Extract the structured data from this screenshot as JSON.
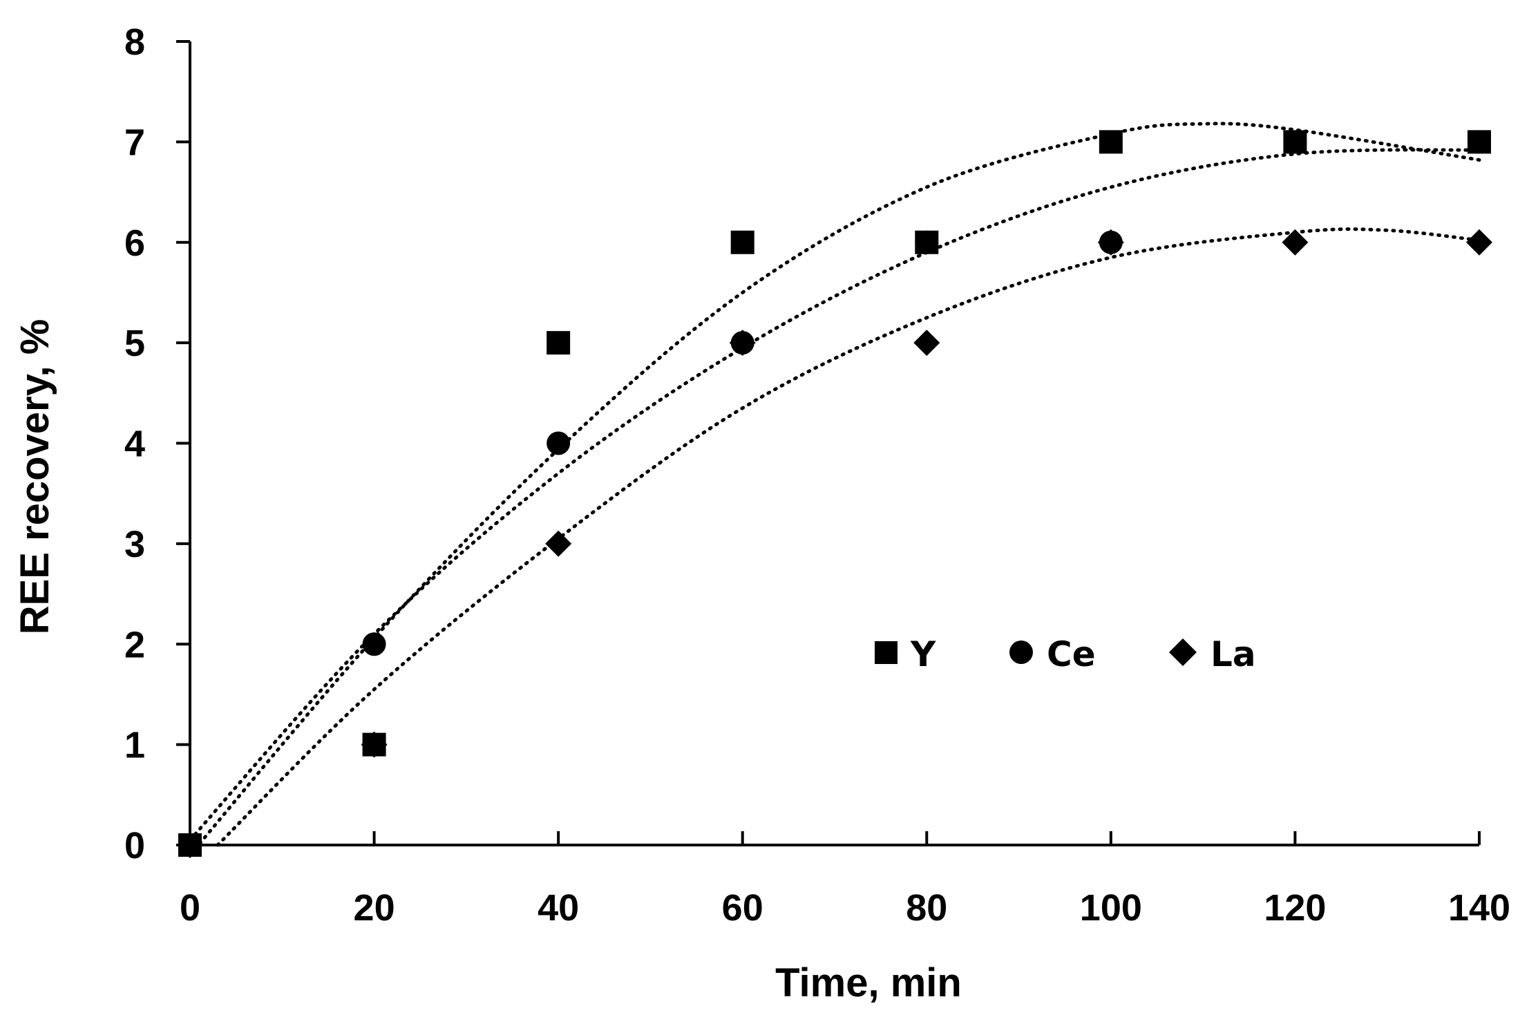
{
  "chart_data": {
    "type": "scatter",
    "title": "",
    "xlabel": "Time, min",
    "ylabel": "REE recovery, %",
    "xlim": [
      0,
      140
    ],
    "ylim": [
      0,
      8
    ],
    "xticks": [
      0,
      20,
      40,
      60,
      80,
      100,
      120,
      140
    ],
    "yticks": [
      0,
      1,
      2,
      3,
      4,
      5,
      6,
      7,
      8
    ],
    "grid": false,
    "legend_position": "center-right",
    "series": [
      {
        "name": "Y",
        "marker": "square",
        "x": [
          0,
          20,
          40,
          60,
          80,
          100,
          120,
          140
        ],
        "y": [
          0,
          1,
          5,
          6,
          6,
          7,
          7,
          7
        ],
        "trendline": "polynomial, dotted",
        "trend_points": [
          [
            0,
            -0.1
          ],
          [
            20,
            2.06
          ],
          [
            40,
            3.94
          ],
          [
            60,
            5.5
          ],
          [
            80,
            6.55
          ],
          [
            100,
            7.08
          ],
          [
            110,
            7.18
          ],
          [
            120,
            7.12
          ],
          [
            140,
            6.82
          ]
        ]
      },
      {
        "name": "Ce",
        "marker": "circle",
        "x": [
          0,
          20,
          40,
          60,
          80,
          100,
          120,
          140
        ],
        "y": [
          0,
          2,
          4,
          5,
          6,
          6,
          7,
          7
        ],
        "trendline": "polynomial, dotted",
        "trend_points": [
          [
            0,
            0.05
          ],
          [
            20,
            2.1
          ],
          [
            40,
            3.7
          ],
          [
            60,
            4.95
          ],
          [
            80,
            5.9
          ],
          [
            100,
            6.55
          ],
          [
            120,
            6.88
          ],
          [
            140,
            6.92
          ]
        ]
      },
      {
        "name": "La",
        "marker": "diamond",
        "x": [
          0,
          20,
          40,
          60,
          80,
          100,
          120,
          140
        ],
        "y": [
          0,
          1,
          3,
          5,
          5,
          6,
          6,
          6
        ],
        "trendline": "polynomial, dotted",
        "trend_points": [
          [
            3,
            0
          ],
          [
            20,
            1.55
          ],
          [
            40,
            3.05
          ],
          [
            60,
            4.35
          ],
          [
            80,
            5.25
          ],
          [
            100,
            5.85
          ],
          [
            120,
            6.1
          ],
          [
            130,
            6.12
          ],
          [
            140,
            6.02
          ]
        ]
      }
    ]
  },
  "colors": {
    "ink": "#000000",
    "background": "#ffffff"
  }
}
